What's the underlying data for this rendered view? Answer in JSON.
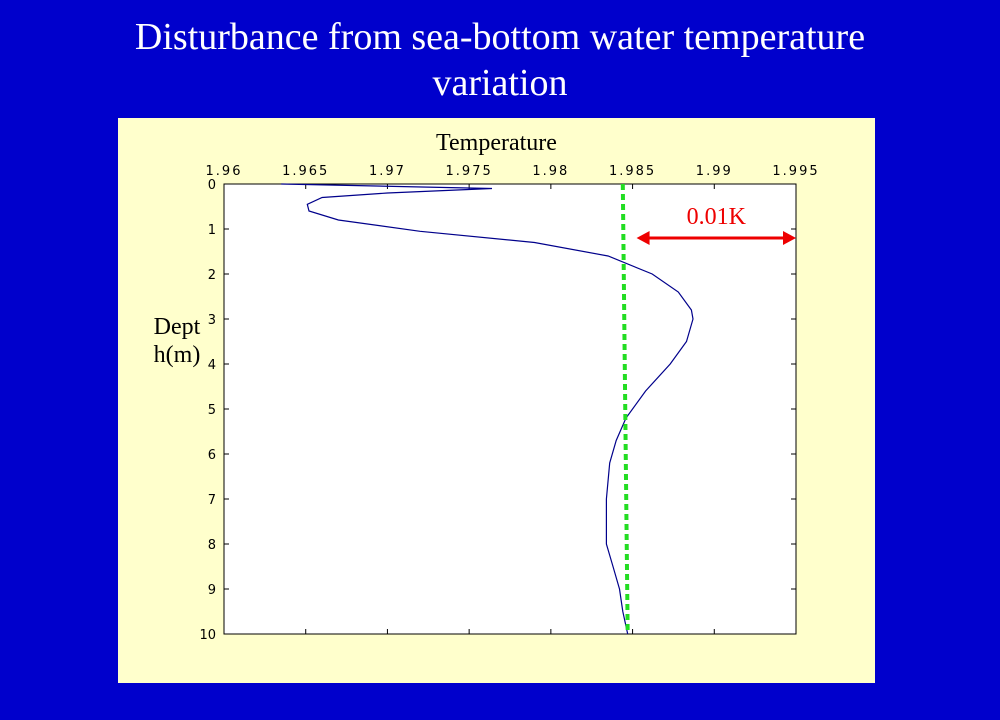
{
  "slide": {
    "title_line1": "Disturbance from sea-bottom water temperature",
    "title_line2": "variation"
  },
  "chart_data": {
    "type": "line",
    "title": "Temperature",
    "xlabel": "Temperature",
    "ylabel": "Depth(m)",
    "xlim": [
      1.96,
      1.995
    ],
    "ylim": [
      0,
      10
    ],
    "y_inverted": true,
    "x_axis_position": "top",
    "x_ticks": [
      "1.96",
      "1.965",
      "1.97",
      "1.975",
      "1.98",
      "1.985",
      "1.99",
      "1.995"
    ],
    "y_ticks": [
      "0",
      "1",
      "2",
      "3",
      "4",
      "5",
      "6",
      "7",
      "8",
      "9",
      "10"
    ],
    "series": [
      {
        "color": "#00008b",
        "style": "solid",
        "points": [
          {
            "x": 1.9635,
            "y": 0.0
          },
          {
            "x": 1.9764,
            "y": 0.1
          },
          {
            "x": 1.97,
            "y": 0.2
          },
          {
            "x": 1.966,
            "y": 0.3
          },
          {
            "x": 1.9651,
            "y": 0.45
          },
          {
            "x": 1.9652,
            "y": 0.6
          },
          {
            "x": 1.967,
            "y": 0.8
          },
          {
            "x": 1.972,
            "y": 1.05
          },
          {
            "x": 1.979,
            "y": 1.3
          },
          {
            "x": 1.9835,
            "y": 1.6
          },
          {
            "x": 1.9862,
            "y": 2.0
          },
          {
            "x": 1.9878,
            "y": 2.4
          },
          {
            "x": 1.9886,
            "y": 2.8
          },
          {
            "x": 1.9887,
            "y": 3.0
          },
          {
            "x": 1.9883,
            "y": 3.5
          },
          {
            "x": 1.9873,
            "y": 4.0
          },
          {
            "x": 1.9858,
            "y": 4.6
          },
          {
            "x": 1.9846,
            "y": 5.2
          },
          {
            "x": 1.984,
            "y": 5.7
          },
          {
            "x": 1.9836,
            "y": 6.2
          },
          {
            "x": 1.9834,
            "y": 7.0
          },
          {
            "x": 1.9834,
            "y": 8.0
          },
          {
            "x": 1.9838,
            "y": 8.5
          },
          {
            "x": 1.9842,
            "y": 9.0
          },
          {
            "x": 1.9844,
            "y": 9.5
          },
          {
            "x": 1.9847,
            "y": 10.0
          }
        ]
      },
      {
        "color": "#22dd22",
        "style": "dotted",
        "points": [
          {
            "x": 1.9844,
            "y": 0
          },
          {
            "x": 1.9847,
            "y": 10
          }
        ]
      }
    ],
    "annotation": {
      "text": "0.01K",
      "color": "#ee0000",
      "x_from": 1.985,
      "x_to": 1.995,
      "y": 1.2
    }
  }
}
